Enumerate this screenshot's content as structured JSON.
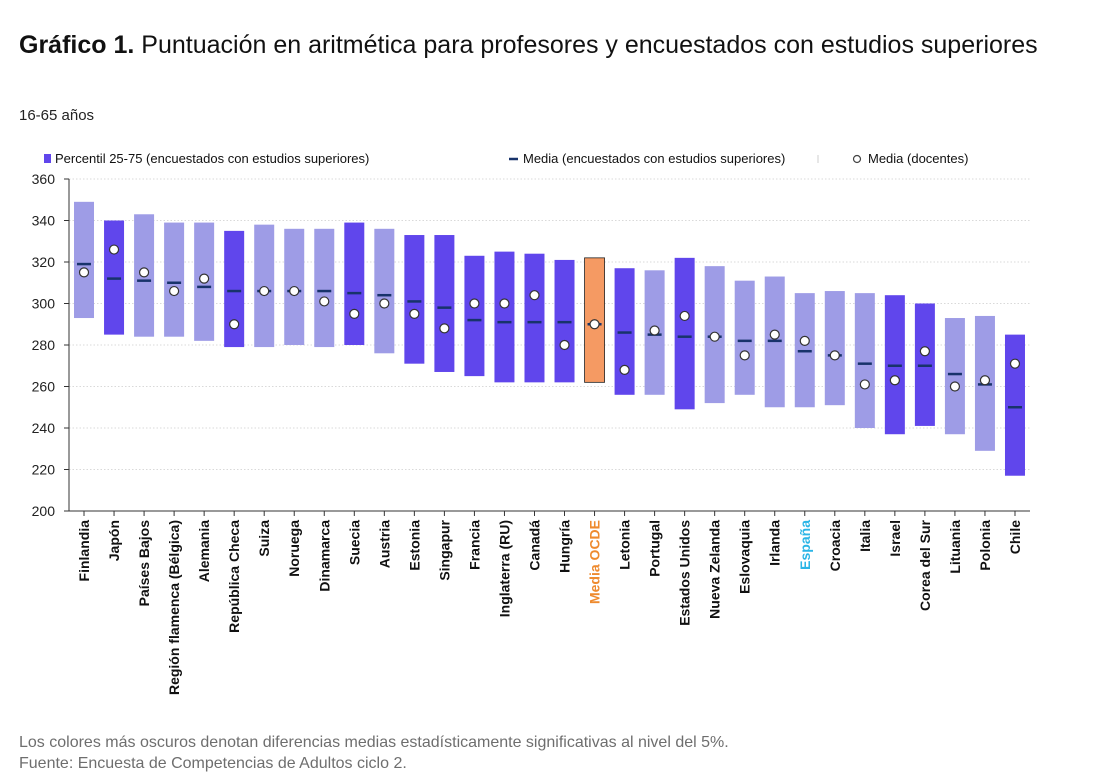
{
  "header": {
    "title_bold": "Gráfico 1.",
    "title_rest": "Puntuación en aritmética para profesores y encuestados con estudios superiores",
    "subtitle": "16-65 años"
  },
  "colors": {
    "dark_bar": "#6046ec",
    "light_bar": "#9e9ce6",
    "oecd_bar": "#f59a63",
    "oecd_label": "#ee8a2e",
    "spain_label": "#2bb5e6",
    "mean_dash": "#18336b",
    "grid": "#d9d9d9"
  },
  "chart_data": {
    "type": "bar",
    "legend_position": "top",
    "grid": true,
    "ylim": [
      200,
      360
    ],
    "yticks": [
      200,
      220,
      240,
      260,
      280,
      300,
      320,
      340,
      360
    ],
    "legend": [
      {
        "key": "range",
        "label": "Percentil 25-75 (encuestados con estudios superiores)"
      },
      {
        "key": "mean",
        "label": "Media (encuestados con estudios superiores)"
      },
      {
        "key": "teacher",
        "label": "Media (docentes)"
      }
    ],
    "categories": [
      {
        "label": "Finlandia",
        "p25": 293,
        "p75": 349,
        "mean": 319,
        "teacher": 315,
        "style": "light"
      },
      {
        "label": "Japón",
        "p25": 285,
        "p75": 340,
        "mean": 312,
        "teacher": 326,
        "style": "dark"
      },
      {
        "label": "Países Bajos",
        "p25": 284,
        "p75": 343,
        "mean": 311,
        "teacher": 315,
        "style": "light"
      },
      {
        "label": "Región flamenca (Bélgica)",
        "p25": 284,
        "p75": 339,
        "mean": 310,
        "teacher": 306,
        "style": "light"
      },
      {
        "label": "Alemania",
        "p25": 282,
        "p75": 339,
        "mean": 308,
        "teacher": 312,
        "style": "light"
      },
      {
        "label": "República Checa",
        "p25": 279,
        "p75": 335,
        "mean": 306,
        "teacher": 290,
        "style": "dark"
      },
      {
        "label": "Suiza",
        "p25": 279,
        "p75": 338,
        "mean": 306,
        "teacher": 306,
        "style": "light"
      },
      {
        "label": "Noruega",
        "p25": 280,
        "p75": 336,
        "mean": 306,
        "teacher": 306,
        "style": "light"
      },
      {
        "label": "Dinamarca",
        "p25": 279,
        "p75": 336,
        "mean": 306,
        "teacher": 301,
        "style": "light"
      },
      {
        "label": "Suecia",
        "p25": 280,
        "p75": 339,
        "mean": 305,
        "teacher": 295,
        "style": "dark"
      },
      {
        "label": "Austria",
        "p25": 276,
        "p75": 336,
        "mean": 304,
        "teacher": 300,
        "style": "light"
      },
      {
        "label": "Estonia",
        "p25": 271,
        "p75": 333,
        "mean": 301,
        "teacher": 295,
        "style": "dark"
      },
      {
        "label": "Singapur",
        "p25": 267,
        "p75": 333,
        "mean": 298,
        "teacher": 288,
        "style": "dark"
      },
      {
        "label": "Francia",
        "p25": 265,
        "p75": 323,
        "mean": 292,
        "teacher": 300,
        "style": "dark"
      },
      {
        "label": "Inglaterra (RU)",
        "p25": 262,
        "p75": 325,
        "mean": 291,
        "teacher": 300,
        "style": "dark"
      },
      {
        "label": "Canadá",
        "p25": 262,
        "p75": 324,
        "mean": 291,
        "teacher": 304,
        "style": "dark"
      },
      {
        "label": "Hungría",
        "p25": 262,
        "p75": 321,
        "mean": 291,
        "teacher": 280,
        "style": "dark"
      },
      {
        "label": "Media OCDE",
        "p25": 262,
        "p75": 322,
        "mean": 290,
        "teacher": 290,
        "style": "oecd"
      },
      {
        "label": "Letonia",
        "p25": 256,
        "p75": 317,
        "mean": 286,
        "teacher": 268,
        "style": "dark"
      },
      {
        "label": "Portugal",
        "p25": 256,
        "p75": 316,
        "mean": 285,
        "teacher": 287,
        "style": "light"
      },
      {
        "label": "Estados Unidos",
        "p25": 249,
        "p75": 322,
        "mean": 284,
        "teacher": 294,
        "style": "dark"
      },
      {
        "label": "Nueva Zelanda",
        "p25": 252,
        "p75": 318,
        "mean": 284,
        "teacher": 284,
        "style": "light"
      },
      {
        "label": "Eslovaquia",
        "p25": 256,
        "p75": 311,
        "mean": 282,
        "teacher": 275,
        "style": "light"
      },
      {
        "label": "Irlanda",
        "p25": 250,
        "p75": 313,
        "mean": 282,
        "teacher": 285,
        "style": "light"
      },
      {
        "label": "España",
        "p25": 250,
        "p75": 305,
        "mean": 277,
        "teacher": 282,
        "style": "light"
      },
      {
        "label": "Croacia",
        "p25": 251,
        "p75": 306,
        "mean": 275,
        "teacher": 275,
        "style": "light"
      },
      {
        "label": "Italia",
        "p25": 240,
        "p75": 305,
        "mean": 271,
        "teacher": 261,
        "style": "light"
      },
      {
        "label": "Israel",
        "p25": 237,
        "p75": 304,
        "mean": 270,
        "teacher": 263,
        "style": "dark"
      },
      {
        "label": "Corea del Sur",
        "p25": 241,
        "p75": 300,
        "mean": 270,
        "teacher": 277,
        "style": "dark"
      },
      {
        "label": "Lituania",
        "p25": 237,
        "p75": 293,
        "mean": 266,
        "teacher": 260,
        "style": "light"
      },
      {
        "label": "Polonia",
        "p25": 229,
        "p75": 294,
        "mean": 261,
        "teacher": 263,
        "style": "light"
      },
      {
        "label": "Chile",
        "p25": 217,
        "p75": 285,
        "mean": 250,
        "teacher": 271,
        "style": "dark"
      }
    ]
  },
  "notes": {
    "line1": "Los colores más oscuros denotan diferencias medias estadísticamente significativas al nivel del 5%.",
    "line2": "Fuente: Encuesta de Competencias de Adultos ciclo 2."
  }
}
